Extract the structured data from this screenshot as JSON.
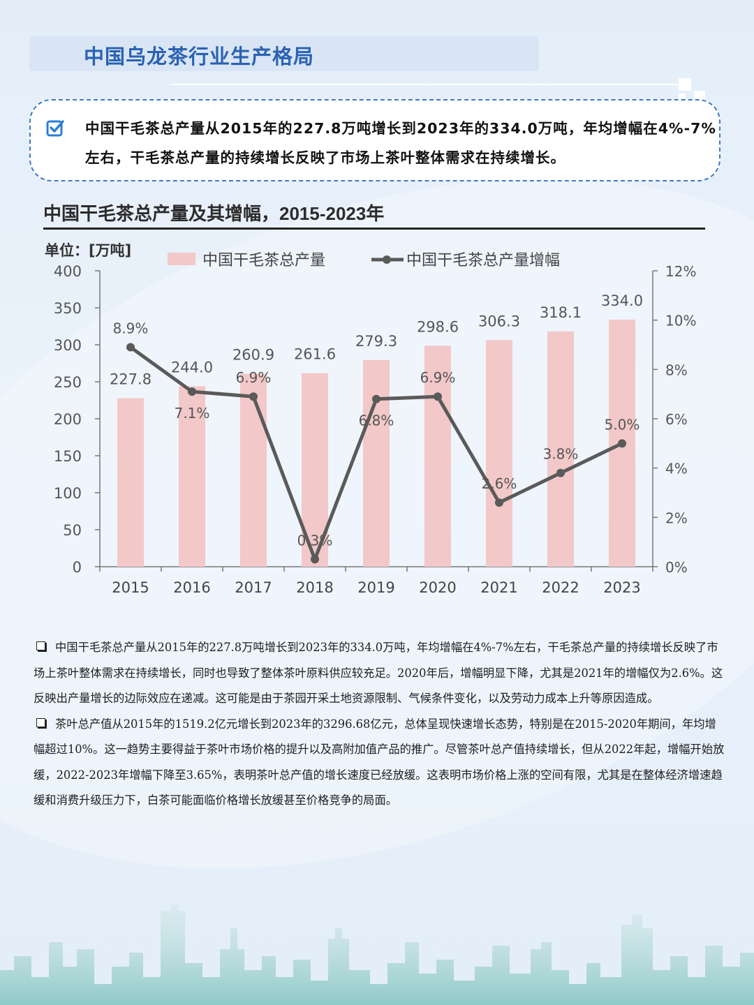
{
  "header": {
    "title": "中国乌龙茶行业生产格局"
  },
  "callout": {
    "icon": "checkbox-icon",
    "text": "中国干毛茶总产量从2015年的227.8万吨增长到2023年的334.0万吨，年均增幅在4%-7%左右，干毛茶总产量的持续增长反映了市场上茶叶整体需求在持续增长。"
  },
  "chart_data": {
    "type": "bar",
    "title": "中国干毛茶总产量及其增幅，2015-2023年",
    "unit_label": "单位：[万吨]",
    "categories": [
      "2015",
      "2016",
      "2017",
      "2018",
      "2019",
      "2020",
      "2021",
      "2022",
      "2023"
    ],
    "series": [
      {
        "name": "中国干毛茶总产量",
        "type": "bar",
        "axis": "left",
        "color": "#f2c8c8",
        "values": [
          227.8,
          244.0,
          260.9,
          261.6,
          279.3,
          298.6,
          306.3,
          318.1,
          334.0
        ],
        "labels": [
          "227.8",
          "244.0",
          "260.9",
          "261.6",
          "279.3",
          "298.6",
          "306.3",
          "318.1",
          "334.0"
        ]
      },
      {
        "name": "中国干毛茶总产量增幅",
        "type": "line",
        "axis": "right",
        "color": "#5a5a5a",
        "values": [
          8.9,
          7.1,
          6.9,
          0.3,
          6.8,
          6.9,
          2.6,
          3.8,
          5.0
        ],
        "labels": [
          "8.9%",
          "7.1%",
          "6.9%",
          "0.3%",
          "6.8%",
          "6.9%",
          "2.6%",
          "3.8%",
          "5.0%"
        ]
      }
    ],
    "ylim": [
      0,
      400
    ],
    "yticks": [
      "0",
      "50",
      "100",
      "150",
      "200",
      "250",
      "300",
      "350",
      "400"
    ],
    "y2lim": [
      0,
      12
    ],
    "y2ticks": [
      "0%",
      "2%",
      "4%",
      "6%",
      "8%",
      "10%",
      "12%"
    ],
    "legend": "top",
    "grid": false
  },
  "paragraphs": [
    "中国干毛茶总产量从2015年的227.8万吨增长到2023年的334.0万吨，年均增幅在4%-7%左右，干毛茶总产量的持续增长反映了市场上茶叶整体需求在持续增长，同时也导致了整体茶叶原料供应较充足。2020年后，增幅明显下降，尤其是2021年的增幅仅为2.6%。这反映出产量增长的边际效应在递减。这可能是由于茶园开采土地资源限制、气候条件变化，以及劳动力成本上升等原因造成。",
    "茶叶总产值从2015年的1519.2亿元增长到2023年的3296.68亿元，总体呈现快速增长态势，特别是在2015-2020年期间，年均增幅超过10%。这一趋势主要得益于茶叶市场价格的提升以及高附加值产品的推广。尽管茶叶总产值持续增长，但从2022年起，增幅开始放缓，2022-2023年增幅下降至3.65%，表明茶叶总产值的增长速度已经放缓。这表明市场价格上涨的空间有限，尤其是在整体经济增速趋缓和消费升级压力下，白茶可能面临价格增长放缓甚至价格竞争的局面。"
  ]
}
